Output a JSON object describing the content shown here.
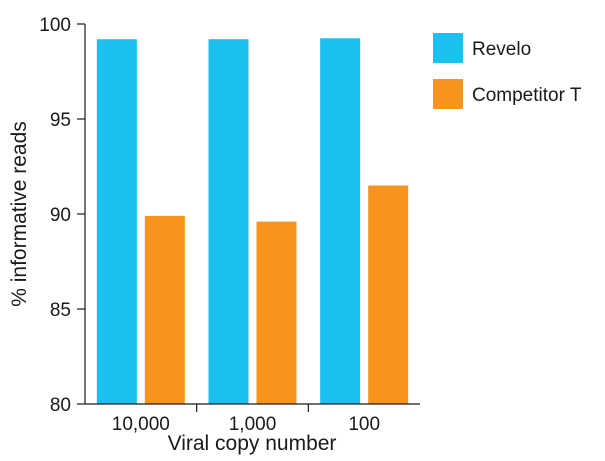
{
  "chart_data": {
    "type": "bar",
    "categories": [
      "10,000",
      "1,000",
      "100"
    ],
    "series": [
      {
        "name": "Revelo",
        "color": "#1ac0f0",
        "values": [
          99.2,
          99.2,
          99.25
        ]
      },
      {
        "name": "Competitor T",
        "color": "#f7941d",
        "values": [
          89.9,
          89.6,
          91.5
        ]
      }
    ],
    "xlabel": "Viral copy number",
    "ylabel": "% informative reads",
    "ylim": [
      80,
      100
    ],
    "yticks": [
      "80",
      "85",
      "90",
      "95",
      "100"
    ],
    "grid": false,
    "legend_position": "top-right"
  }
}
